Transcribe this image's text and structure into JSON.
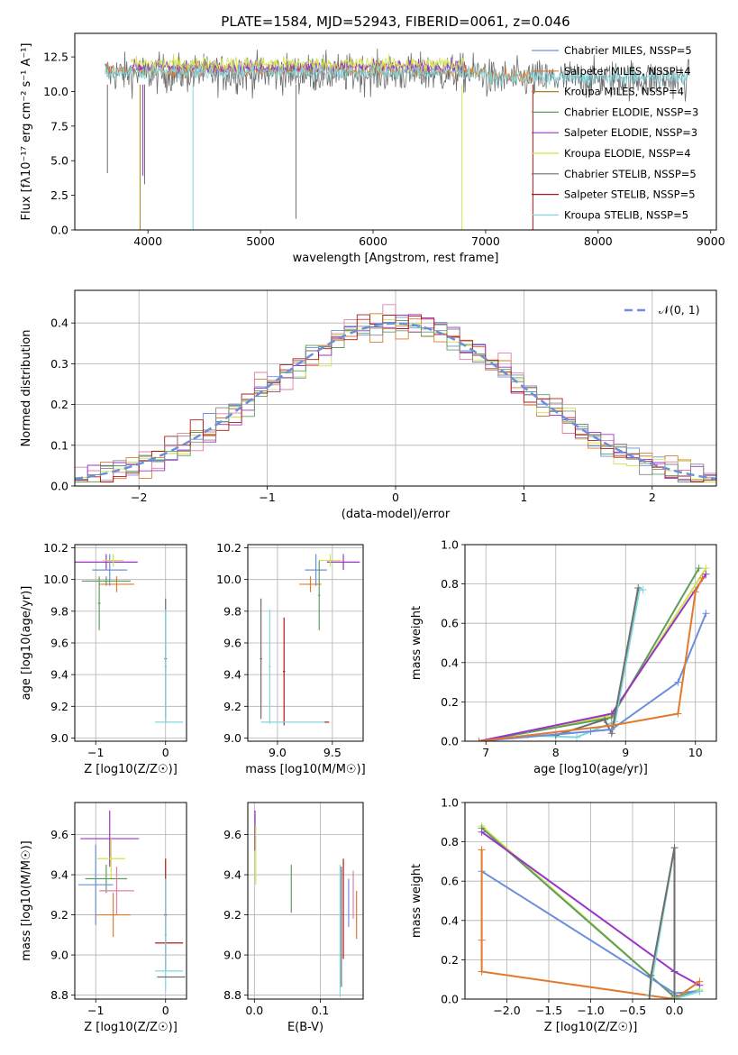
{
  "colors": {
    "cm": "#6a8fdb",
    "sm": "#e07a2f",
    "km": "#a8861a",
    "ce": "#5e9f5e",
    "se": "#9a34c8",
    "ke": "#cfe34a",
    "cs": "#6e6e6e",
    "ss": "#b01818",
    "ks": "#7fd6dc",
    "pink": "#e27fa8",
    "gray": "#888888"
  },
  "chart_data": [
    {
      "type": "line",
      "title": "PLATE=1584, MJD=52943, FIBERID=0061, z=0.046",
      "xlabel": "wavelength [Angstrom, rest frame]",
      "ylabel": "Flux [fλ10⁻¹⁷ erg cm⁻² s⁻¹ A⁻¹]",
      "xlim": [
        3350,
        9050
      ],
      "ylim": [
        0,
        14.2
      ],
      "xticks": [
        4000,
        5000,
        6000,
        7000,
        8000,
        9000
      ],
      "yticks": [
        0.0,
        2.5,
        5.0,
        7.5,
        10.0,
        12.5
      ],
      "legend_position": "right",
      "legend": [
        {
          "label": "Chabrier MILES, NSSP=5",
          "color_key": "cm"
        },
        {
          "label": "Salpeter MILES, NSSP=4",
          "color_key": "sm"
        },
        {
          "label": "Kroupa MILES, NSSP=4",
          "color_key": "km"
        },
        {
          "label": "Chabrier ELODIE, NSSP=3",
          "color_key": "ce"
        },
        {
          "label": "Salpeter ELODIE, NSSP=3",
          "color_key": "se"
        },
        {
          "label": "Kroupa ELODIE, NSSP=4",
          "color_key": "ke"
        },
        {
          "label": "Chabrier STELIB, NSSP=5",
          "color_key": "cs"
        },
        {
          "label": "Salpeter STELIB, NSSP=5",
          "color_key": "ss"
        },
        {
          "label": "Kroupa STELIB, NSSP=5",
          "color_key": "ks"
        }
      ],
      "series": [
        {
          "color_key": "cs",
          "x_range": [
            3620,
            8810
          ],
          "level": 11.3,
          "noise": 1.6
        },
        {
          "color_key": "sm",
          "x_range": [
            3620,
            7420
          ],
          "level": 11.5,
          "noise": 0.5
        },
        {
          "color_key": "se",
          "x_range": [
            3850,
            6820
          ],
          "level": 11.8,
          "noise": 0.55
        },
        {
          "color_key": "ke",
          "x_range": [
            3850,
            6820
          ],
          "level": 12.0,
          "noise": 0.6
        },
        {
          "color_key": "ks",
          "x_range": [
            3620,
            8810
          ],
          "level": 11.4,
          "noise": 0.6
        }
      ],
      "dips": [
        {
          "x": 3930,
          "y": 0.0,
          "color_key": "km"
        },
        {
          "x": 3970,
          "y": 3.3,
          "color_key": "cs"
        },
        {
          "x": 3955,
          "y": 3.9,
          "color_key": "se"
        },
        {
          "x": 4400,
          "y": 0.0,
          "color_key": "ks"
        },
        {
          "x": 5315,
          "y": 0.8,
          "color_key": "cs"
        },
        {
          "x": 6790,
          "y": 0.0,
          "color_key": "ke"
        },
        {
          "x": 7420,
          "y": 0.0,
          "color_key": "ss"
        },
        {
          "x": 3640,
          "y": 4.1,
          "color_key": "cs"
        }
      ]
    },
    {
      "type": "line",
      "xlabel": "(data-model)/error",
      "ylabel": "Normed distribution",
      "xlim": [
        -2.5,
        2.5
      ],
      "ylim": [
        0,
        0.48
      ],
      "xticks": [
        -2,
        -1,
        0,
        1,
        2
      ],
      "yticks": [
        0.0,
        0.1,
        0.2,
        0.3,
        0.4
      ],
      "grid": true,
      "legend_position": "top-right",
      "legend": [
        {
          "label": "𝒩(0, 1)",
          "color_key": "cm"
        }
      ],
      "bin_width": 0.1,
      "hist_color_keys": [
        "cm",
        "sm",
        "pink",
        "ke",
        "se",
        "ce",
        "ss",
        "gray"
      ],
      "gaussian": {
        "mean": 0,
        "sigma": 1
      }
    },
    {
      "type": "scatter",
      "xlabel": "Z [log10(Z/Z☉)]",
      "ylabel": "age  [log10(age/yr)]",
      "xlim": [
        -1.3,
        0.3
      ],
      "ylim": [
        8.98,
        10.22
      ],
      "xticks": [
        -1,
        0
      ],
      "yticks": [
        9.0,
        9.2,
        9.4,
        9.6,
        9.8,
        10.0,
        10.2
      ],
      "grid": true,
      "points": [
        {
          "x": -0.85,
          "y": 10.11,
          "xerr": 0.45,
          "yerr": 0.05,
          "color_key": "se"
        },
        {
          "x": -0.8,
          "y": 10.06,
          "xerr": 0.25,
          "yerr": 0.1,
          "color_key": "cm"
        },
        {
          "x": -0.75,
          "y": 10.12,
          "xerr": 0.15,
          "yerr": 0.04,
          "color_key": "ke"
        },
        {
          "x": -0.7,
          "y": 9.97,
          "xerr": 0.25,
          "yerr": 0.05,
          "color_key": "sm"
        },
        {
          "x": -0.85,
          "y": 9.99,
          "xerr": 0.35,
          "yerr": 0.03,
          "color_key": "ce"
        },
        {
          "x": -0.95,
          "y": 9.85,
          "xerr": 0.02,
          "yerr": 0.17,
          "color_key": "ce"
        },
        {
          "x": 0.0,
          "y": 9.5,
          "xerr": 0.02,
          "yerr": 0.38,
          "color_key": "cs"
        },
        {
          "x": 0.0,
          "y": 9.45,
          "xerr": 0.02,
          "yerr": 0.36,
          "color_key": "ks"
        },
        {
          "x": 0.05,
          "y": 9.1,
          "xerr": 0.2,
          "yerr": 0.0,
          "color_key": "ks"
        }
      ]
    },
    {
      "type": "scatter",
      "xlabel": "mass [log10(M/M☉)]",
      "ylabel": "",
      "xlim": [
        8.73,
        9.78
      ],
      "ylim": [
        8.98,
        10.22
      ],
      "xticks": [
        9.0,
        9.5
      ],
      "yticks": [
        9.0,
        9.2,
        9.4,
        9.6,
        9.8,
        10.0,
        10.2
      ],
      "grid": true,
      "points": [
        {
          "x": 9.6,
          "y": 10.11,
          "xerr": 0.15,
          "yerr": 0.05,
          "color_key": "se"
        },
        {
          "x": 9.48,
          "y": 10.12,
          "xerr": 0.1,
          "yerr": 0.04,
          "color_key": "ke"
        },
        {
          "x": 9.35,
          "y": 10.06,
          "xerr": 0.1,
          "yerr": 0.1,
          "color_key": "cm"
        },
        {
          "x": 9.3,
          "y": 9.97,
          "xerr": 0.1,
          "yerr": 0.05,
          "color_key": "sm"
        },
        {
          "x": 9.38,
          "y": 9.9,
          "xerr": 0.01,
          "yerr": 0.22,
          "color_key": "ce"
        },
        {
          "x": 8.85,
          "y": 9.5,
          "xerr": 0.01,
          "yerr": 0.38,
          "color_key": "cs"
        },
        {
          "x": 8.93,
          "y": 9.45,
          "xerr": 0.01,
          "yerr": 0.36,
          "color_key": "ks"
        },
        {
          "x": 9.06,
          "y": 9.42,
          "xerr": 0.01,
          "yerr": 0.34,
          "color_key": "ss"
        },
        {
          "x": 9.15,
          "y": 9.1,
          "xerr": 0.3,
          "yerr": 0.0,
          "color_key": "ks"
        },
        {
          "x": 9.45,
          "y": 9.1,
          "xerr": 0.02,
          "yerr": 0.0,
          "color_key": "ss"
        }
      ]
    },
    {
      "type": "line",
      "xlabel": "age  [log10(age/yr)]",
      "ylabel": "mass weight",
      "xlim": [
        6.7,
        10.3
      ],
      "ylim": [
        0,
        1.0
      ],
      "xticks": [
        7,
        8,
        9,
        10
      ],
      "yticks": [
        0.0,
        0.2,
        0.4,
        0.6,
        0.8,
        1.0
      ],
      "grid": true,
      "series": [
        {
          "color_key": "ke",
          "x": [
            6.9,
            8.8,
            10.15
          ],
          "y": [
            0.0,
            0.13,
            0.88
          ]
        },
        {
          "color_key": "ce",
          "x": [
            6.9,
            8.8,
            10.05
          ],
          "y": [
            0.0,
            0.12,
            0.88
          ]
        },
        {
          "color_key": "se",
          "x": [
            6.9,
            8.8,
            10.15
          ],
          "y": [
            0.0,
            0.14,
            0.85
          ]
        },
        {
          "color_key": "ks",
          "x": [
            7.6,
            8.3,
            8.85,
            9.2,
            9.25
          ],
          "y": [
            0.03,
            0.02,
            0.1,
            0.77,
            0.77
          ]
        },
        {
          "color_key": "cs",
          "x": [
            8.0,
            8.7,
            8.8,
            9.18
          ],
          "y": [
            0.03,
            0.11,
            0.04,
            0.78
          ]
        },
        {
          "color_key": "cm",
          "x": [
            6.9,
            8.5,
            8.8,
            9.75,
            10.15
          ],
          "y": [
            0.0,
            0.05,
            0.06,
            0.3,
            0.65
          ]
        },
        {
          "color_key": "sm",
          "x": [
            6.9,
            8.8,
            9.75,
            10.0,
            10.1
          ],
          "y": [
            0.0,
            0.08,
            0.14,
            0.76,
            0.83
          ]
        }
      ]
    },
    {
      "type": "scatter",
      "xlabel": "Z [log10(Z/Z☉)]",
      "ylabel": "mass [log10(M/M☉)]",
      "xlim": [
        -1.3,
        0.3
      ],
      "ylim": [
        8.78,
        9.76
      ],
      "xticks": [
        -1,
        0
      ],
      "yticks": [
        8.8,
        9.0,
        9.2,
        9.4,
        9.6
      ],
      "grid": true,
      "points": [
        {
          "x": -0.8,
          "y": 9.58,
          "xerr": 0.42,
          "yerr": 0.14,
          "color_key": "se"
        },
        {
          "x": -0.78,
          "y": 9.48,
          "xerr": 0.2,
          "yerr": 0.1,
          "color_key": "ke"
        },
        {
          "x": -0.85,
          "y": 9.38,
          "xerr": 0.3,
          "yerr": 0.07,
          "color_key": "ce"
        },
        {
          "x": -1.0,
          "y": 9.35,
          "xerr": 0.25,
          "yerr": 0.2,
          "color_key": "cm"
        },
        {
          "x": -0.7,
          "y": 9.32,
          "xerr": 0.25,
          "yerr": 0.12,
          "color_key": "pink"
        },
        {
          "x": -0.75,
          "y": 9.2,
          "xerr": 0.25,
          "yerr": 0.11,
          "color_key": "sm"
        },
        {
          "x": 0.05,
          "y": 9.06,
          "xerr": 0.2,
          "yerr": 0.0,
          "color_key": "ss"
        },
        {
          "x": 0.0,
          "y": 9.2,
          "xerr": 0.02,
          "yerr": 0.28,
          "color_key": "ss"
        },
        {
          "x": 0.0,
          "y": 9.1,
          "xerr": 0.02,
          "yerr": 0.28,
          "color_key": "ks"
        },
        {
          "x": 0.05,
          "y": 8.92,
          "xerr": 0.2,
          "yerr": 0.0,
          "color_key": "ks"
        },
        {
          "x": 0.08,
          "y": 8.89,
          "xerr": 0.2,
          "yerr": 0.0,
          "color_key": "cs"
        }
      ]
    },
    {
      "type": "scatter",
      "xlabel": "E(B-V)",
      "ylabel": "",
      "xlim": [
        -0.01,
        0.165
      ],
      "ylim": [
        8.78,
        9.76
      ],
      "xticks": [
        0.0,
        0.1
      ],
      "yticks": [
        8.8,
        9.0,
        9.2,
        9.4,
        9.6
      ],
      "grid": true,
      "points": [
        {
          "x": 0.001,
          "y": 9.62,
          "xerr": 0.0,
          "yerr": 0.1,
          "color_key": "se"
        },
        {
          "x": 0.002,
          "y": 9.5,
          "xerr": 0.0,
          "yerr": 0.15,
          "color_key": "ke"
        },
        {
          "x": 0.056,
          "y": 9.33,
          "xerr": 0.0,
          "yerr": 0.12,
          "color_key": "ce"
        },
        {
          "x": 0.13,
          "y": 9.12,
          "xerr": 0.0,
          "yerr": 0.33,
          "color_key": "ks"
        },
        {
          "x": 0.132,
          "y": 9.14,
          "xerr": 0.0,
          "yerr": 0.3,
          "color_key": "cs"
        },
        {
          "x": 0.135,
          "y": 9.23,
          "xerr": 0.0,
          "yerr": 0.25,
          "color_key": "ss"
        },
        {
          "x": 0.143,
          "y": 9.26,
          "xerr": 0.0,
          "yerr": 0.12,
          "color_key": "cm"
        },
        {
          "x": 0.15,
          "y": 9.3,
          "xerr": 0.0,
          "yerr": 0.12,
          "color_key": "pink"
        },
        {
          "x": 0.155,
          "y": 9.2,
          "xerr": 0.0,
          "yerr": 0.12,
          "color_key": "sm"
        }
      ]
    },
    {
      "type": "line",
      "xlabel": "Z [log10(Z/Z☉)]",
      "ylabel": "mass weight",
      "xlim": [
        -2.5,
        0.5
      ],
      "ylim": [
        0,
        1.0
      ],
      "xticks": [
        -2.0,
        -1.5,
        -1.0,
        -0.5,
        0.0
      ],
      "yticks": [
        0.0,
        0.2,
        0.4,
        0.6,
        0.8,
        1.0
      ],
      "grid": true,
      "series": [
        {
          "color_key": "ke",
          "x": [
            -2.3,
            0.0,
            0.3
          ],
          "y": [
            0.88,
            0.01,
            0.05
          ]
        },
        {
          "color_key": "ce",
          "x": [
            -2.3,
            0.0,
            0.3
          ],
          "y": [
            0.87,
            0.01,
            0.04
          ]
        },
        {
          "color_key": "se",
          "x": [
            -2.3,
            0.0,
            0.3
          ],
          "y": [
            0.85,
            0.14,
            0.07
          ]
        },
        {
          "color_key": "cm",
          "x": [
            -2.3,
            0.0,
            0.3
          ],
          "y": [
            0.65,
            0.03,
            0.04
          ]
        },
        {
          "color_key": "sm",
          "x": [
            -2.3,
            -2.3,
            -2.3,
            0.0,
            0.3
          ],
          "y": [
            0.76,
            0.3,
            0.14,
            0.0,
            0.09
          ]
        },
        {
          "color_key": "ks",
          "x": [
            -0.3,
            0.0,
            0.0,
            0.3
          ],
          "y": [
            0.02,
            0.77,
            0.0,
            0.04
          ]
        },
        {
          "color_key": "cs",
          "x": [
            -0.3,
            -0.28,
            0.0,
            0.0
          ],
          "y": [
            0.0,
            0.12,
            0.77,
            0.02
          ]
        }
      ]
    }
  ]
}
